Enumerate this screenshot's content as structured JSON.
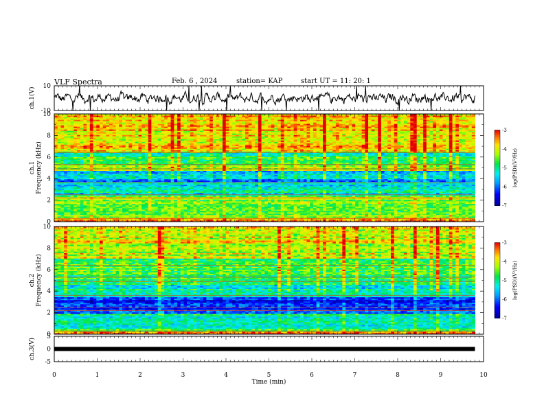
{
  "header": {
    "title": "VLF Spectra",
    "date": "Feb. 6  , 2024",
    "station": "station= KAP",
    "start_ut": "start  UT  =   11: 20: 1"
  },
  "chart_data": [
    {
      "type": "line",
      "panel": "ch1-waveform",
      "ylabel": "ch.1(V)",
      "ylim": [
        -10,
        10
      ],
      "y_ticks": [
        "10",
        "-10"
      ],
      "xlim": [
        0,
        10
      ],
      "x_data_end": 9.8,
      "description_values": {
        "baseline": 0,
        "typical_amplitude": 4,
        "max_amplitude": 10
      }
    },
    {
      "type": "heatmap",
      "panel": "ch1-spectrogram",
      "ylabel": [
        "ch.1",
        "Frequency  (kHz)"
      ],
      "ylim": [
        0,
        10
      ],
      "y_ticks": [
        "0",
        "2",
        "4",
        "6",
        "8",
        "10"
      ],
      "xlim": [
        0,
        10
      ],
      "x_data_end": 9.8,
      "colorbar": {
        "label": "log(PSD)(V²/Hz)",
        "range": [
          -7,
          -3
        ],
        "ticks": [
          "-3",
          "-4",
          "-5",
          "-6",
          "-7"
        ]
      },
      "bands": [
        {
          "from": 0.0,
          "to": 0.4,
          "level": -3.6
        },
        {
          "from": 0.4,
          "to": 2.4,
          "level": -4.4
        },
        {
          "from": 2.4,
          "to": 3.6,
          "level": -5.3
        },
        {
          "from": 3.6,
          "to": 4.7,
          "level": -5.7
        },
        {
          "from": 4.7,
          "to": 5.3,
          "level": -4.2
        },
        {
          "from": 5.3,
          "to": 6.5,
          "level": -5.0
        },
        {
          "from": 6.5,
          "to": 10.0,
          "level": -3.8
        }
      ]
    },
    {
      "type": "heatmap",
      "panel": "ch2-spectrogram",
      "ylabel": [
        "ch.2",
        "Frequency  (kHz)"
      ],
      "ylim": [
        0,
        10
      ],
      "y_ticks": [
        "0",
        "2",
        "4",
        "6",
        "8",
        "10"
      ],
      "xlim": [
        0,
        10
      ],
      "x_data_end": 9.8,
      "colorbar": {
        "label": "log(PSD)(V²/Hz)",
        "range": [
          -7,
          -3
        ],
        "ticks": [
          "-3",
          "-4",
          "-5",
          "-6",
          "-7"
        ]
      },
      "bands": [
        {
          "from": 0.0,
          "to": 0.3,
          "level": -3.5
        },
        {
          "from": 0.3,
          "to": 1.9,
          "level": -5.0
        },
        {
          "from": 1.9,
          "to": 3.4,
          "level": -6.3
        },
        {
          "from": 3.4,
          "to": 4.6,
          "level": -5.2
        },
        {
          "from": 4.6,
          "to": 7.0,
          "level": -4.7
        },
        {
          "from": 7.0,
          "to": 10.0,
          "level": -4.1
        }
      ]
    },
    {
      "type": "line",
      "panel": "ch3-waveform",
      "ylabel": "ch.3(V)",
      "ylim": [
        -5,
        5
      ],
      "y_ticks": [
        "5",
        "0",
        "-5"
      ],
      "xlim": [
        0,
        10
      ],
      "x_data_end": 9.8,
      "level": 0
    }
  ],
  "x_axis": {
    "label": "Time  (min)",
    "ticks": [
      "0",
      "1",
      "2",
      "3",
      "4",
      "5",
      "6",
      "7",
      "8",
      "9",
      "10"
    ]
  }
}
